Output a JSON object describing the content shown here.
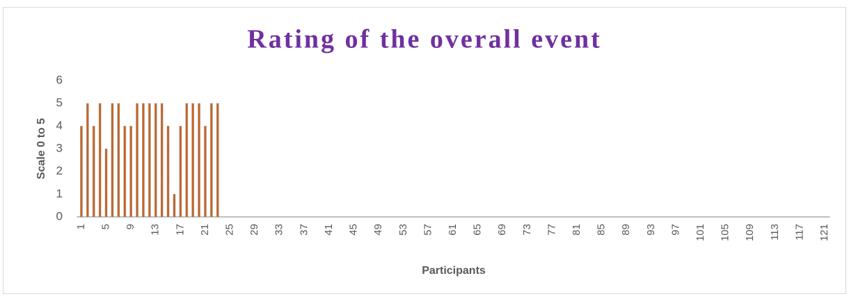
{
  "chart_data": {
    "type": "bar",
    "title": "Rating of the overall event",
    "y_label": "Scale 0 to 5",
    "x_label": "Participants",
    "color": "#c0652b",
    "ylim": [
      0,
      6
    ],
    "yticks": [
      0,
      1,
      2,
      3,
      4,
      5,
      6
    ],
    "categories": [
      "1",
      null,
      null,
      null,
      "5",
      null,
      null,
      null,
      "9",
      null,
      null,
      null,
      "13",
      null,
      null,
      null,
      "17",
      null,
      null,
      null,
      "21",
      null,
      null,
      null,
      "25",
      null,
      null,
      null,
      "29",
      null,
      null,
      null,
      "33",
      null,
      null,
      null,
      "37",
      null,
      null,
      null,
      "41",
      null,
      null,
      null,
      "45",
      null,
      null,
      null,
      "49",
      null,
      null,
      null,
      "53",
      null,
      null,
      null,
      "57",
      null,
      null,
      null,
      "61",
      null,
      null,
      null,
      "65",
      null,
      null,
      null,
      "69",
      null,
      null,
      null,
      "73",
      null,
      null,
      null,
      "77",
      null,
      null,
      null,
      "81",
      null,
      null,
      null,
      "85",
      null,
      null,
      null,
      "89",
      null,
      null,
      null,
      "93",
      null,
      null,
      null,
      "97",
      null,
      null,
      null,
      "101",
      null,
      null,
      null,
      "105",
      null,
      null,
      null,
      "109",
      null,
      null,
      null,
      "113",
      null,
      null,
      null,
      "117",
      null,
      null,
      null,
      "121"
    ],
    "values": [
      4,
      5,
      4,
      5,
      3,
      5,
      5,
      4,
      4,
      5,
      5,
      5,
      5,
      5,
      4,
      1,
      4,
      5,
      5,
      5,
      4,
      5,
      5,
      null,
      null,
      null,
      null,
      null,
      null,
      null,
      null,
      null,
      null,
      null,
      null,
      null,
      null,
      null,
      null,
      null,
      null,
      null,
      null,
      null,
      null,
      null,
      null,
      null,
      null,
      null,
      null,
      null,
      null,
      null,
      null,
      null,
      null,
      null,
      null,
      null,
      null,
      null,
      null,
      null,
      null,
      null,
      null,
      null,
      null,
      null,
      null,
      null,
      null,
      null,
      null,
      null,
      null,
      null,
      null,
      null,
      null,
      null,
      null,
      null,
      null,
      null,
      null,
      null,
      null,
      null,
      null,
      null,
      null,
      null,
      null,
      null,
      null,
      null,
      null,
      null,
      null,
      null,
      null,
      null,
      null,
      null,
      null,
      null,
      null,
      null,
      null,
      null,
      null,
      null,
      null,
      null,
      null,
      null,
      null,
      null,
      null
    ]
  }
}
